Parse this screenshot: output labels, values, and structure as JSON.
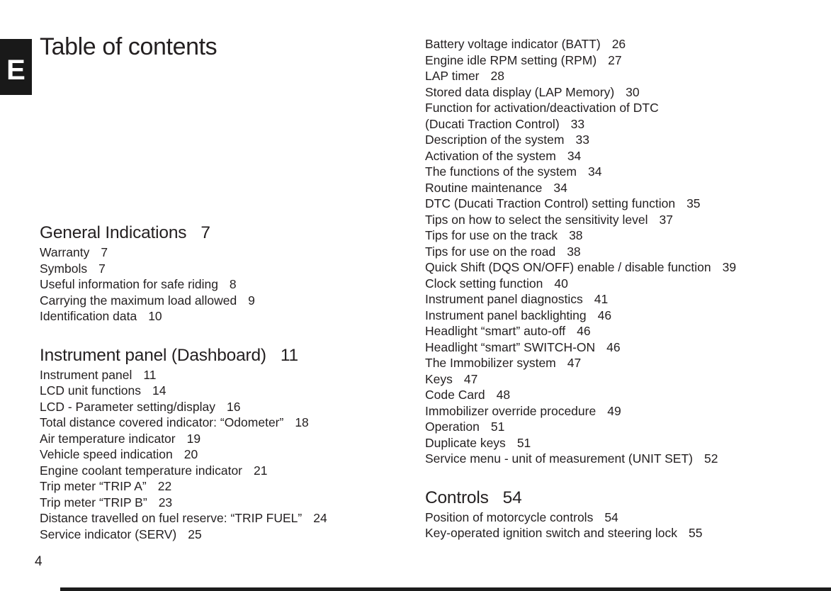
{
  "page": {
    "language_badge": "E",
    "title": "Table of contents",
    "page_number": "4"
  },
  "colors": {
    "text": "#231f20",
    "badge_bg": "#191919",
    "badge_text": "#ffffff",
    "footer_bar": "#1c1c1c",
    "background": "#ffffff"
  },
  "toc": {
    "columns": [
      {
        "sections": [
          {
            "heading": "General Indications",
            "heading_page": "7",
            "items": [
              {
                "label": "Warranty",
                "page": "7"
              },
              {
                "label": "Symbols",
                "page": "7"
              },
              {
                "label": "Useful information for safe riding",
                "page": "8"
              },
              {
                "label": "Carrying the maximum load allowed",
                "page": "9"
              },
              {
                "label": "Identification data",
                "page": "10"
              }
            ]
          },
          {
            "heading": "Instrument panel (Dashboard)",
            "heading_page": "11",
            "items": [
              {
                "label": "Instrument panel",
                "page": "11"
              },
              {
                "label": "LCD unit functions",
                "page": "14"
              },
              {
                "label": "LCD - Parameter setting/display",
                "page": "16"
              },
              {
                "label": "Total distance covered indicator: “Odometer”",
                "page": "18"
              },
              {
                "label": "Air temperature indicator",
                "page": "19"
              },
              {
                "label": "Vehicle speed indication",
                "page": "20"
              },
              {
                "label": "Engine coolant temperature indicator",
                "page": "21"
              },
              {
                "label": "Trip meter “TRIP A”",
                "page": "22"
              },
              {
                "label": "Trip meter “TRIP B”",
                "page": "23"
              },
              {
                "label": "Distance travelled on fuel reserve: “TRIP FUEL”",
                "page": "24"
              },
              {
                "label": "Service indicator (SERV)",
                "page": "25"
              }
            ]
          }
        ]
      },
      {
        "sections": [
          {
            "heading": null,
            "heading_page": null,
            "items": [
              {
                "label": "Battery voltage indicator (BATT)",
                "page": "26"
              },
              {
                "label": "Engine idle RPM setting (RPM)",
                "page": "27"
              },
              {
                "label": "LAP timer",
                "page": "28"
              },
              {
                "label": "Stored data display (LAP Memory)",
                "page": "30"
              },
              {
                "label": "Function for activation/deactivation of DTC\n(Ducati Traction Control)",
                "page": "33"
              },
              {
                "label": "Description of the system",
                "page": "33"
              },
              {
                "label": "Activation of the system",
                "page": "34"
              },
              {
                "label": "The functions of the system",
                "page": "34"
              },
              {
                "label": "Routine maintenance",
                "page": "34"
              },
              {
                "label": "DTC (Ducati Traction Control) setting function",
                "page": "35"
              },
              {
                "label": "Tips on how to select the sensitivity level",
                "page": "37"
              },
              {
                "label": "Tips for use on the track",
                "page": "38"
              },
              {
                "label": "Tips for use on the road",
                "page": "38"
              },
              {
                "label": "Quick Shift (DQS ON/OFF) enable / disable function",
                "page": "39"
              },
              {
                "label": "Clock setting function",
                "page": "40"
              },
              {
                "label": "Instrument panel diagnostics",
                "page": "41"
              },
              {
                "label": "Instrument panel backlighting",
                "page": "46"
              },
              {
                "label": "Headlight “smart” auto-off",
                "page": "46"
              },
              {
                "label": "Headlight “smart” SWITCH-ON",
                "page": "46"
              },
              {
                "label": "The Immobilizer system",
                "page": "47"
              },
              {
                "label": "Keys",
                "page": "47"
              },
              {
                "label": "Code Card",
                "page": "48"
              },
              {
                "label": "Immobilizer override procedure",
                "page": "49"
              },
              {
                "label": "Operation",
                "page": "51"
              },
              {
                "label": "Duplicate keys",
                "page": "51"
              },
              {
                "label": "Service menu - unit of measurement (UNIT SET)",
                "page": "52"
              }
            ]
          },
          {
            "heading": "Controls",
            "heading_page": "54",
            "items": [
              {
                "label": "Position of motorcycle controls",
                "page": "54"
              },
              {
                "label": "Key-operated ignition switch and steering lock",
                "page": "55"
              }
            ]
          }
        ]
      }
    ]
  }
}
